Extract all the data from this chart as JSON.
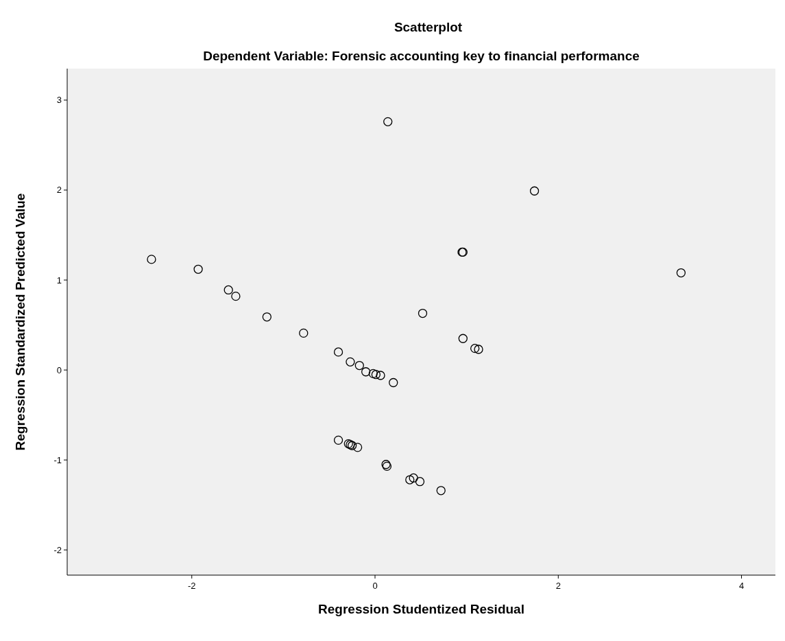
{
  "chart_data": {
    "type": "scatter",
    "title": "Scatterplot",
    "subtitle": "Dependent Variable: Forensic accounting key to financial performance",
    "xlabel": "Regression Studentized Residual",
    "ylabel": "Regression Standardized Predicted Value",
    "xlim": [
      -3.36,
      4.37
    ],
    "ylim": [
      -2.28,
      3.35
    ],
    "xticks": [
      -2,
      0,
      2,
      4
    ],
    "yticks": [
      -2,
      -1,
      0,
      1,
      2,
      3
    ],
    "grid": false,
    "marker": "circle",
    "series": [
      {
        "color": "#000000",
        "x": [
          -2.44,
          -1.93,
          -1.6,
          -1.52,
          -1.18,
          -0.78,
          -0.4,
          -0.27,
          -0.17,
          -0.1,
          -0.02,
          0.01,
          0.06,
          0.2,
          0.14,
          1.74,
          0.95,
          0.96,
          3.34,
          0.52,
          0.96,
          1.09,
          1.13,
          -0.4,
          -0.29,
          -0.27,
          -0.25,
          -0.19,
          0.12,
          0.13,
          0.38,
          0.42,
          0.49,
          0.72
        ],
        "values": [
          1.23,
          1.12,
          0.89,
          0.82,
          0.59,
          0.41,
          0.2,
          0.09,
          0.05,
          -0.02,
          -0.04,
          -0.05,
          -0.06,
          -0.14,
          2.76,
          1.99,
          1.31,
          1.31,
          1.08,
          0.63,
          0.35,
          0.24,
          0.23,
          -0.78,
          -0.82,
          -0.83,
          -0.84,
          -0.86,
          -1.05,
          -1.07,
          -1.22,
          -1.2,
          -1.24,
          -1.34
        ]
      }
    ]
  }
}
